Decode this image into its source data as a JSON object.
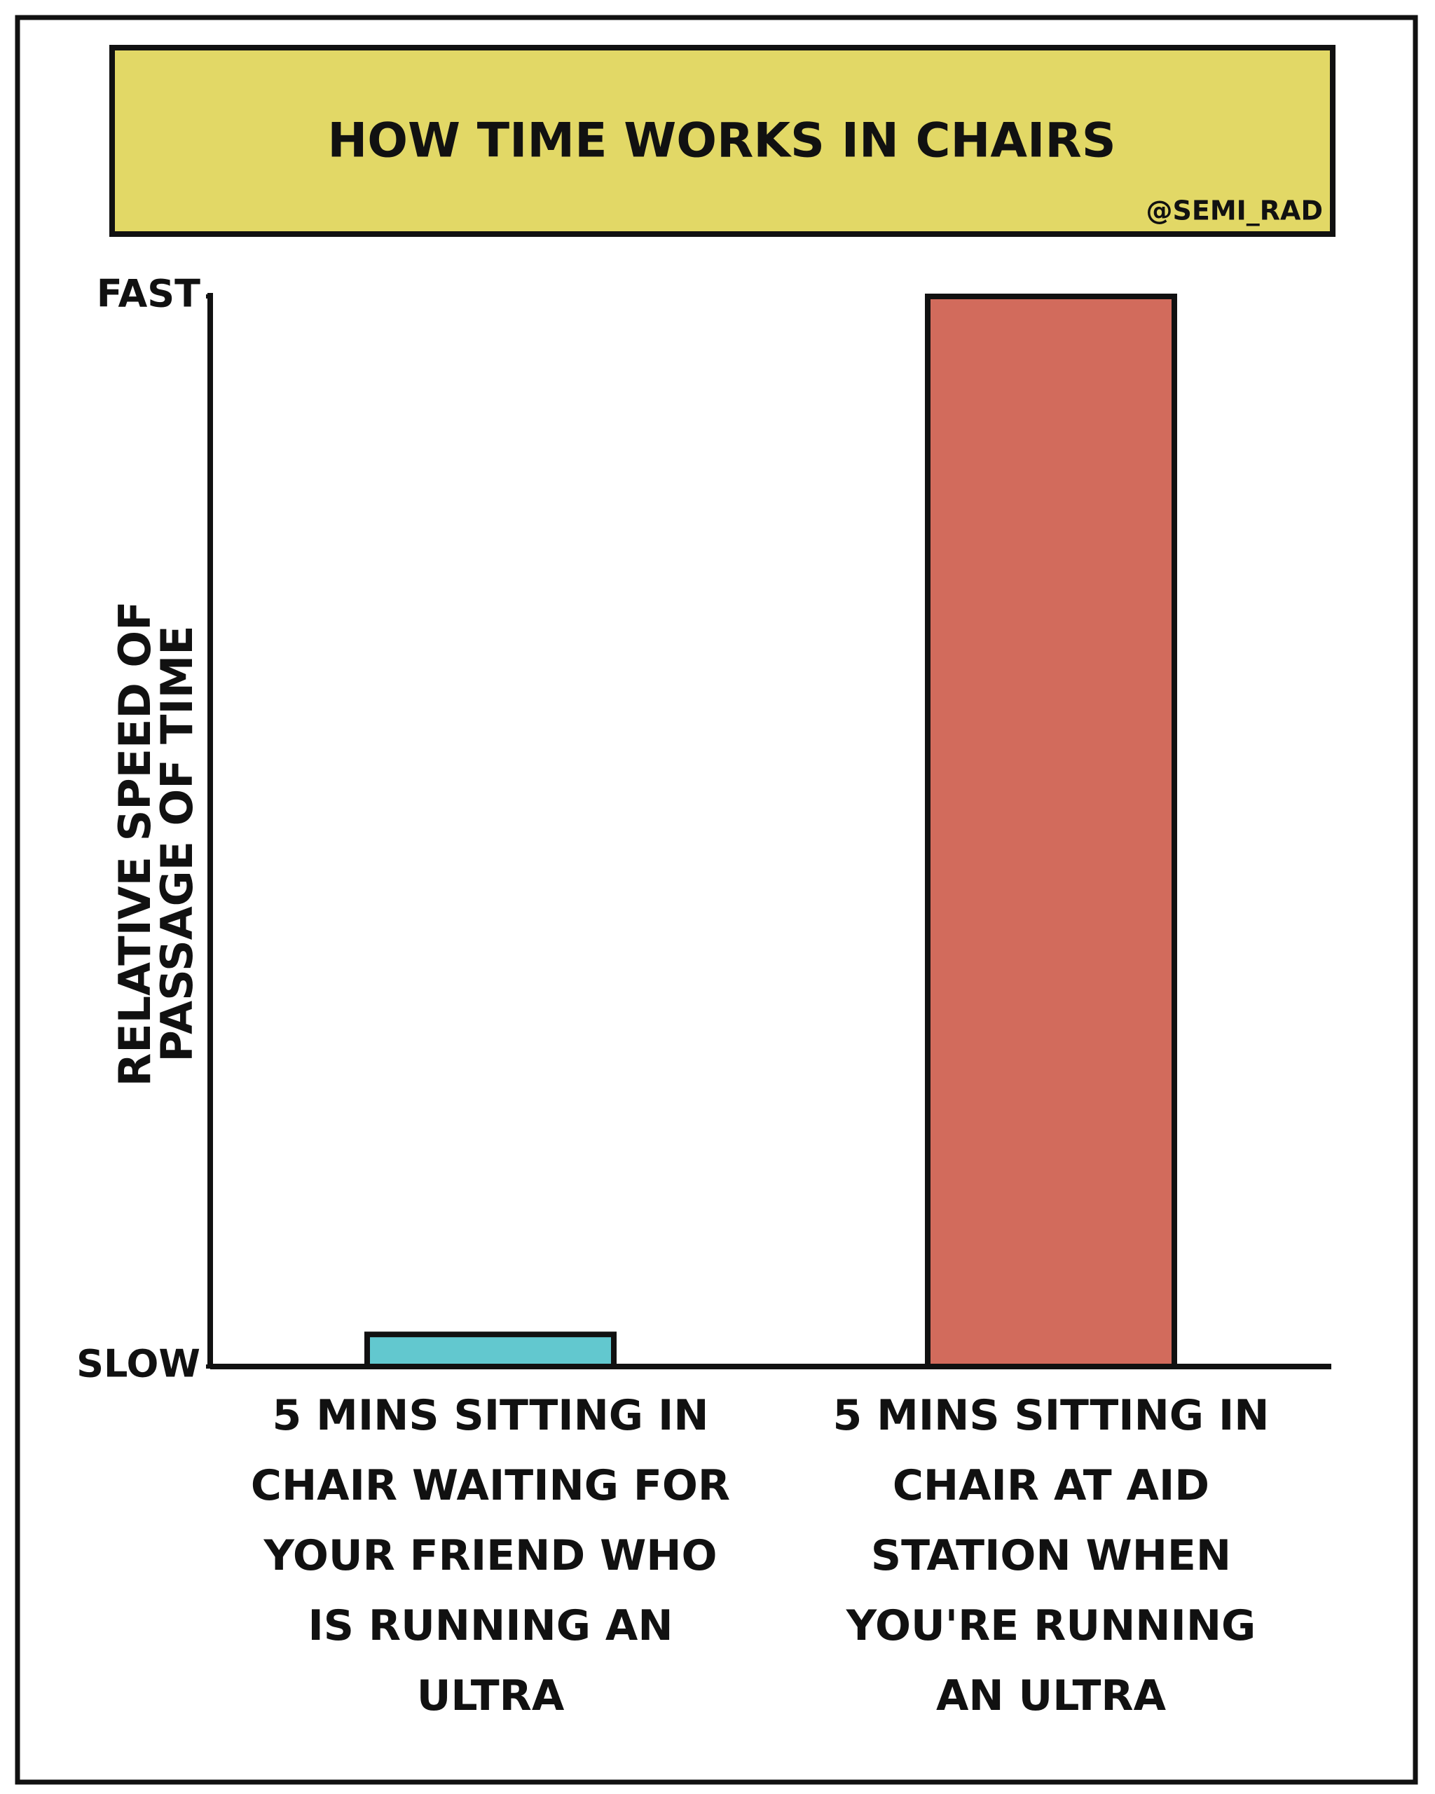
{
  "chart_data": {
    "type": "bar",
    "title": "HOW TIME WORKS IN CHAIRS",
    "credit": "@SEMI_RAD",
    "y_label": [
      "RELATIVE SPEED OF",
      "PASSAGE OF TIME"
    ],
    "categories": [
      "5 MINS SITTING IN CHAIR WAITING FOR YOUR FRIEND WHO IS RUNNING AN ULTRA",
      "5 MINS SITTING IN CHAIR AT AID STATION WHEN YOU'RE RUNNING AN ULTRA"
    ],
    "values": [
      3,
      100
    ],
    "colors": [
      "#62c8cf",
      "#d26b5c"
    ],
    "ylim": [
      0,
      100
    ],
    "yticks": [
      {
        "value": 0,
        "label": "SLOW"
      },
      {
        "value": 100,
        "label": "FAST"
      }
    ],
    "grid": false
  }
}
